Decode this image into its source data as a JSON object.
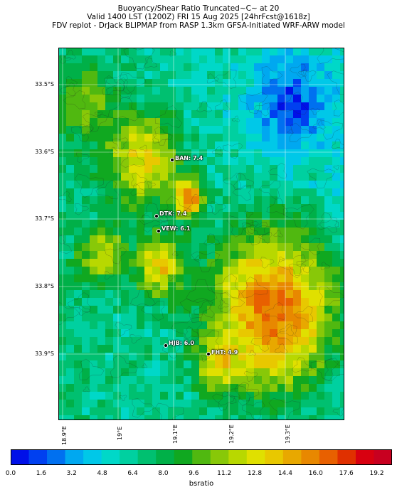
{
  "title": {
    "line1": "Buoyancy/Shear Ratio Truncated~C~    at 20",
    "line2": "Valid 1400 LST (1200Z) FRI 15 Aug 2025 [24hrFcst@1618z]",
    "line3": "FDV replot - DrJack BLIPMAP from RASP 1.3km GFSA-Initiated WRF-ARW model"
  },
  "map": {
    "lat_labels": [
      "33.5°S",
      "33.6°S",
      "33.7°S",
      "33.8°S",
      "33.9°S"
    ],
    "lon_labels": [
      "18.9°E",
      "19°E",
      "19.1°E",
      "19.2°E",
      "19.3°E"
    ],
    "stations": [
      {
        "label": "BAN: 7.4"
      },
      {
        "label": "DTK: 7.4"
      },
      {
        "label": "VEW: 6.1"
      },
      {
        "label": "HJB: 6.0"
      },
      {
        "label": "FHT: 4.9"
      }
    ]
  },
  "colorbar": {
    "label": "bsratio",
    "ticks": [
      "0.0",
      "1.6",
      "3.2",
      "4.8",
      "6.4",
      "8.0",
      "9.6",
      "11.2",
      "12.8",
      "14.4",
      "16.0",
      "17.6",
      "19.2"
    ],
    "colors": [
      "#0010e8",
      "#0040f0",
      "#0070f0",
      "#00a8f0",
      "#00c8e8",
      "#00d8c8",
      "#00d0a0",
      "#00c070",
      "#00b048",
      "#10a820",
      "#50b810",
      "#88c808",
      "#b8d800",
      "#e0e000",
      "#e8c800",
      "#e8a800",
      "#e88800",
      "#e86000",
      "#e03000",
      "#d80010",
      "#c80020"
    ],
    "range": [
      0,
      20
    ]
  },
  "colors": {
    "contour": "#222222"
  }
}
